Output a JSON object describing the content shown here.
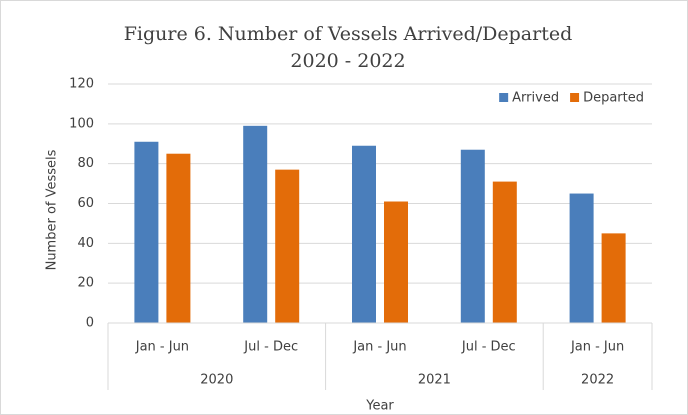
{
  "chart_data": {
    "type": "bar",
    "title": "Figure 6. Number of Vessels Arrived/Departed",
    "subtitle": "2020 - 2022",
    "x_label": "Year",
    "y_label": "Number  of Vessels",
    "categories": [
      "Jan - Jun",
      "Jul - Dec",
      "Jan - Jun",
      "Jul - Dec",
      "Jan - Jun"
    ],
    "groups": [
      {
        "name": "2020",
        "span": 2
      },
      {
        "name": "2021",
        "span": 2
      },
      {
        "name": "2022",
        "span": 1
      }
    ],
    "series": [
      {
        "name": "Arrived",
        "color": "#4a7ebb",
        "values": [
          91,
          99,
          89,
          87,
          65
        ]
      },
      {
        "name": "Departed",
        "color": "#e36c09",
        "values": [
          85,
          77,
          61,
          71,
          45
        ]
      }
    ],
    "ylim": [
      0,
      120
    ],
    "yticks": [
      0,
      20,
      40,
      60,
      80,
      100,
      120
    ],
    "grid": true,
    "legend": "top-right"
  }
}
